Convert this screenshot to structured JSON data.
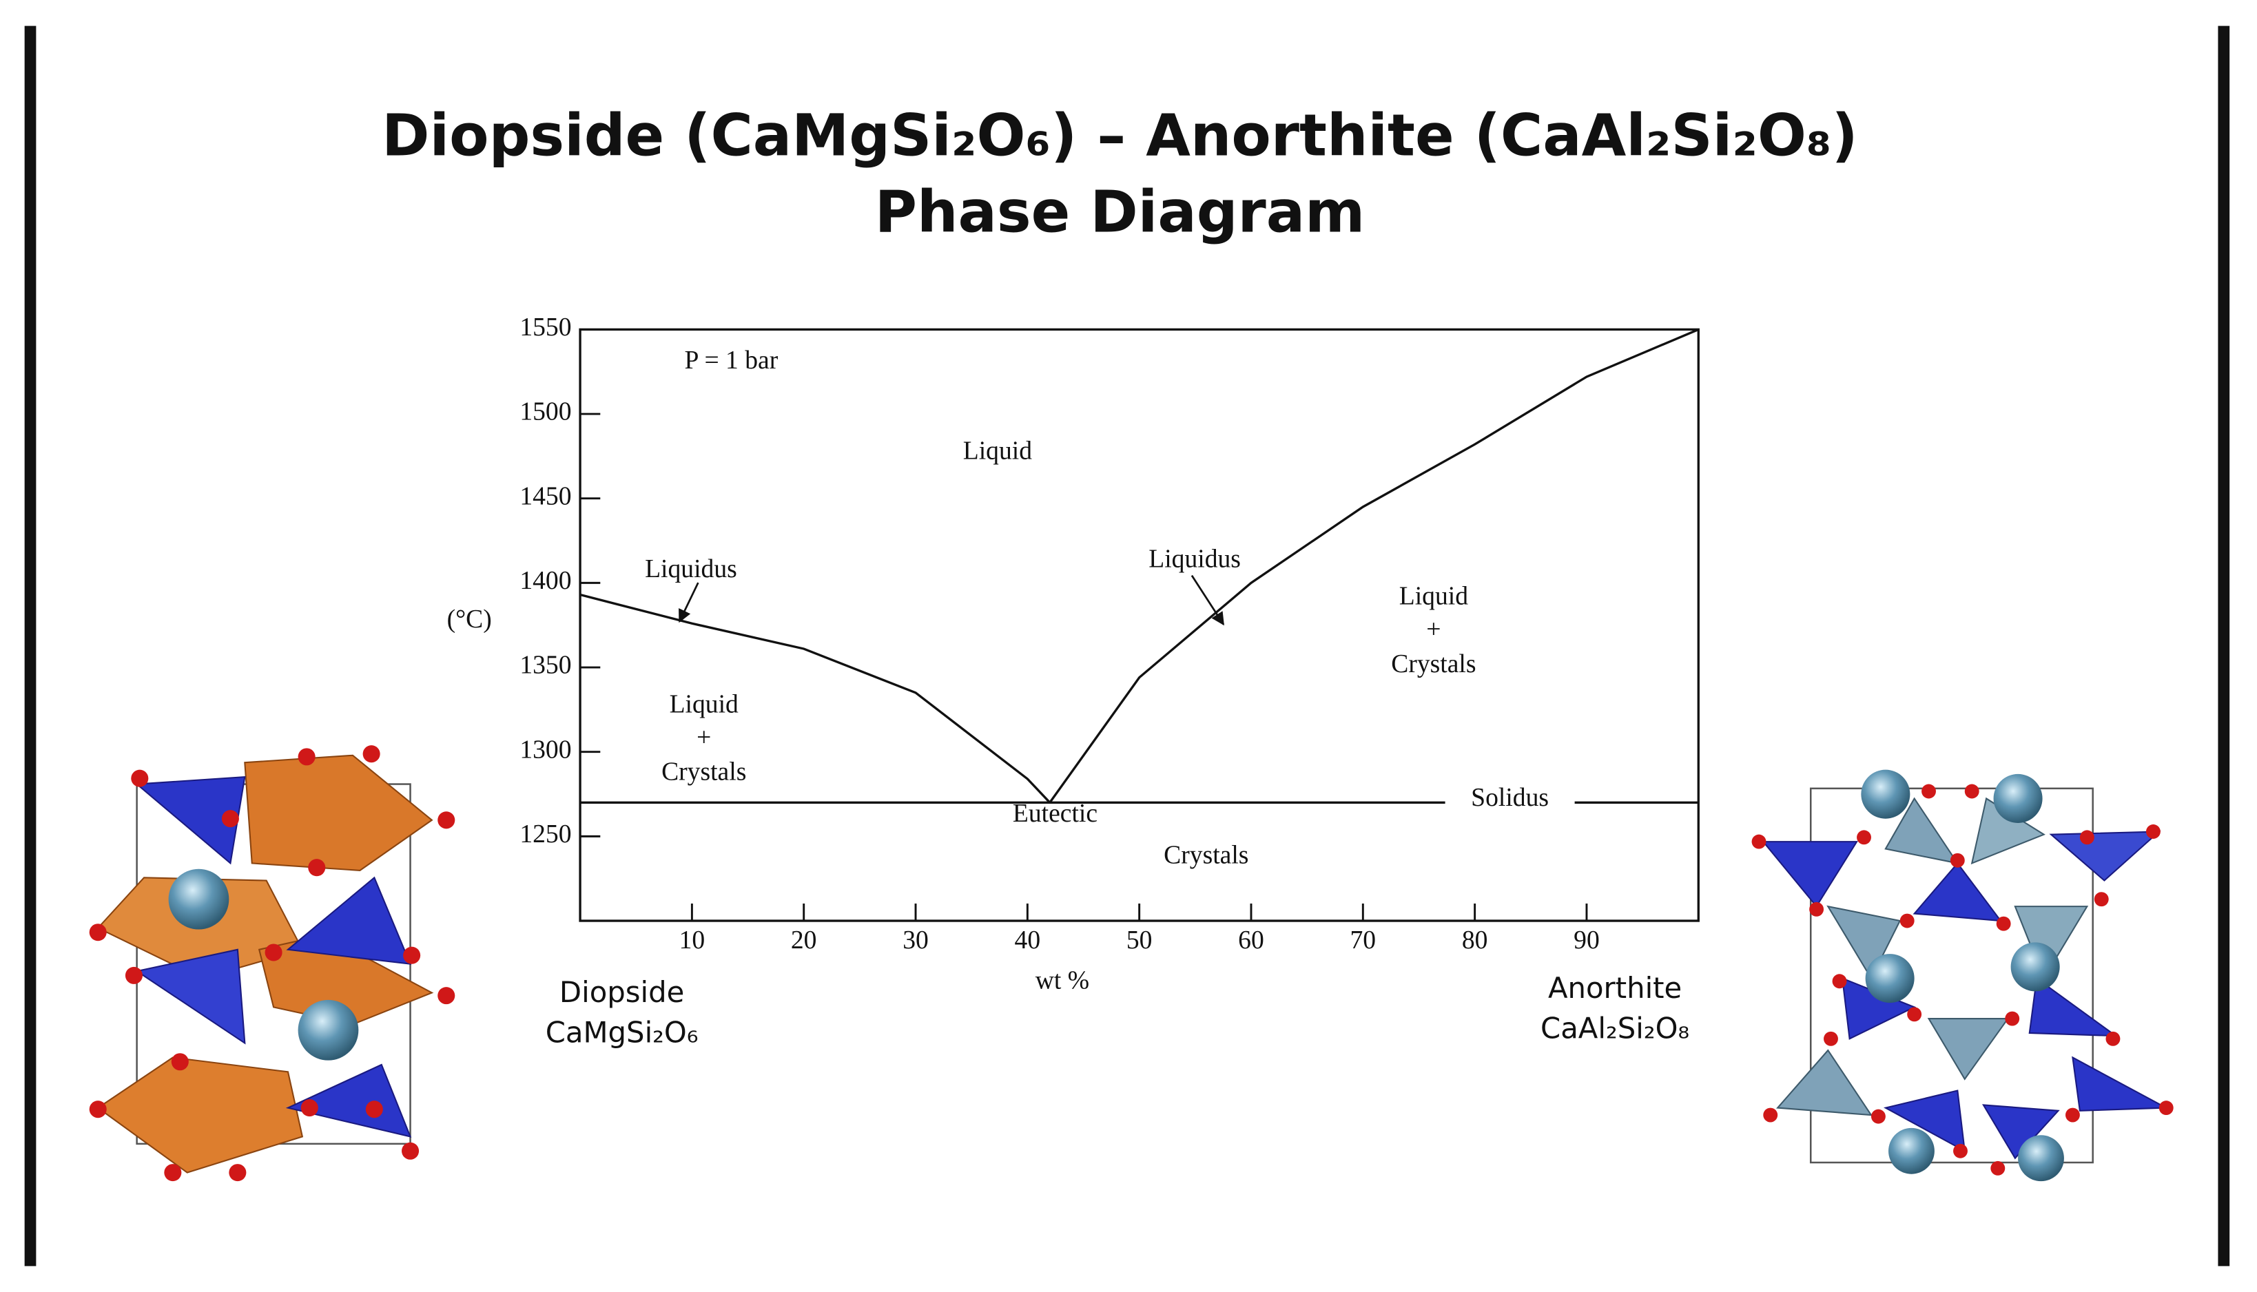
{
  "chart_data": {
    "type": "line",
    "title": "Diopside (CaMgSi₂O₆) – Anorthite (CaAl₂Si₂O₈)",
    "subtitle": "Phase Diagram",
    "xlabel": "wt %",
    "ylabel": "(°C)",
    "xlim": [
      0,
      100
    ],
    "ylim": [
      1200,
      1550
    ],
    "xticks": [
      10,
      20,
      30,
      40,
      50,
      60,
      70,
      80,
      90
    ],
    "yticks": [
      1250,
      1300,
      1350,
      1400,
      1450,
      1500,
      1550
    ],
    "grid": false,
    "series": [
      {
        "color": "#111111",
        "x": [
          0,
          10,
          20,
          30,
          40,
          42
        ],
        "values": [
          1393,
          1376,
          1361,
          1335,
          1284,
          1270
        ]
      },
      {
        "color": "#111111",
        "x": [
          42,
          50,
          60,
          70,
          80,
          90,
          100
        ],
        "values": [
          1270,
          1344,
          1400,
          1445,
          1482,
          1522,
          1550
        ]
      },
      {
        "color": "#111111",
        "x": [
          0,
          100
        ],
        "values": [
          1270,
          1270
        ]
      }
    ],
    "left_component": {
      "name": "Diopside",
      "formula": "CaMgSi₂O₆"
    },
    "right_component": {
      "name": "Anorthite",
      "formula": "CaAl₂Si₂O₈"
    },
    "annotations": [
      "P = 1 bar",
      "Liquid",
      "Liquidus",
      "Liquidus",
      "Liquid",
      "+",
      "Crystals",
      "Liquid",
      "+",
      "Crystals",
      "Eutectic",
      "Solidus",
      "Crystals"
    ]
  }
}
